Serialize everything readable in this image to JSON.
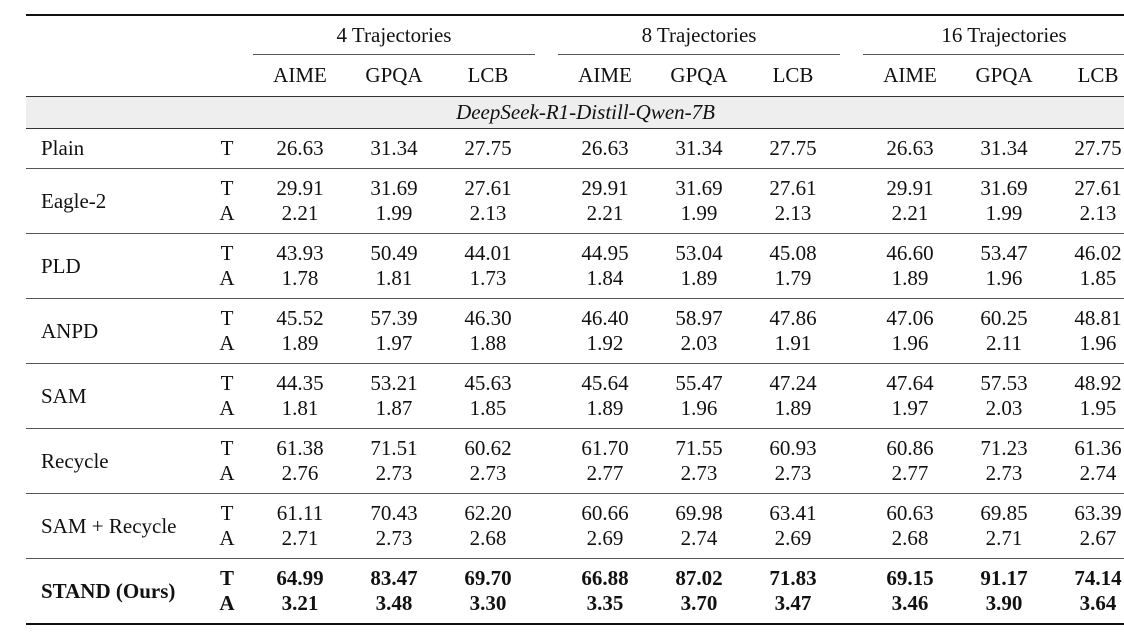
{
  "table": {
    "groups": [
      "4 Trajectories",
      "8 Trajectories",
      "16 Trajectories"
    ],
    "columns": [
      "AIME",
      "GPQA",
      "LCB"
    ],
    "model": "DeepSeek-R1-Distill-Qwen-7B",
    "rows": [
      {
        "method": "Plain",
        "metrics": [
          "T"
        ],
        "values": [
          [
            "26.63",
            "31.34",
            "27.75",
            "26.63",
            "31.34",
            "27.75",
            "26.63",
            "31.34",
            "27.75"
          ]
        ]
      },
      {
        "method": "Eagle-2",
        "metrics": [
          "T",
          "A"
        ],
        "values": [
          [
            "29.91",
            "31.69",
            "27.61",
            "29.91",
            "31.69",
            "27.61",
            "29.91",
            "31.69",
            "27.61"
          ],
          [
            "2.21",
            "1.99",
            "2.13",
            "2.21",
            "1.99",
            "2.13",
            "2.21",
            "1.99",
            "2.13"
          ]
        ]
      },
      {
        "method": "PLD",
        "metrics": [
          "T",
          "A"
        ],
        "values": [
          [
            "43.93",
            "50.49",
            "44.01",
            "44.95",
            "53.04",
            "45.08",
            "46.60",
            "53.47",
            "46.02"
          ],
          [
            "1.78",
            "1.81",
            "1.73",
            "1.84",
            "1.89",
            "1.79",
            "1.89",
            "1.96",
            "1.85"
          ]
        ]
      },
      {
        "method": "ANPD",
        "metrics": [
          "T",
          "A"
        ],
        "values": [
          [
            "45.52",
            "57.39",
            "46.30",
            "46.40",
            "58.97",
            "47.86",
            "47.06",
            "60.25",
            "48.81"
          ],
          [
            "1.89",
            "1.97",
            "1.88",
            "1.92",
            "2.03",
            "1.91",
            "1.96",
            "2.11",
            "1.96"
          ]
        ]
      },
      {
        "method": "SAM",
        "metrics": [
          "T",
          "A"
        ],
        "values": [
          [
            "44.35",
            "53.21",
            "45.63",
            "45.64",
            "55.47",
            "47.24",
            "47.64",
            "57.53",
            "48.92"
          ],
          [
            "1.81",
            "1.87",
            "1.85",
            "1.89",
            "1.96",
            "1.89",
            "1.97",
            "2.03",
            "1.95"
          ]
        ]
      },
      {
        "method": "Recycle",
        "metrics": [
          "T",
          "A"
        ],
        "values": [
          [
            "61.38",
            "71.51",
            "60.62",
            "61.70",
            "71.55",
            "60.93",
            "60.86",
            "71.23",
            "61.36"
          ],
          [
            "2.76",
            "2.73",
            "2.73",
            "2.77",
            "2.73",
            "2.73",
            "2.77",
            "2.73",
            "2.74"
          ]
        ]
      },
      {
        "method": "SAM + Recycle",
        "metrics": [
          "T",
          "A"
        ],
        "values": [
          [
            "61.11",
            "70.43",
            "62.20",
            "60.66",
            "69.98",
            "63.41",
            "60.63",
            "69.85",
            "63.39"
          ],
          [
            "2.71",
            "2.73",
            "2.68",
            "2.69",
            "2.74",
            "2.69",
            "2.68",
            "2.71",
            "2.67"
          ]
        ]
      },
      {
        "method": "STAND (Ours)",
        "bold": true,
        "metrics": [
          "T",
          "A"
        ],
        "values": [
          [
            "64.99",
            "83.47",
            "69.70",
            "66.88",
            "87.02",
            "71.83",
            "69.15",
            "91.17",
            "74.14"
          ],
          [
            "3.21",
            "3.48",
            "3.30",
            "3.35",
            "3.70",
            "3.47",
            "3.46",
            "3.90",
            "3.64"
          ]
        ]
      }
    ]
  }
}
